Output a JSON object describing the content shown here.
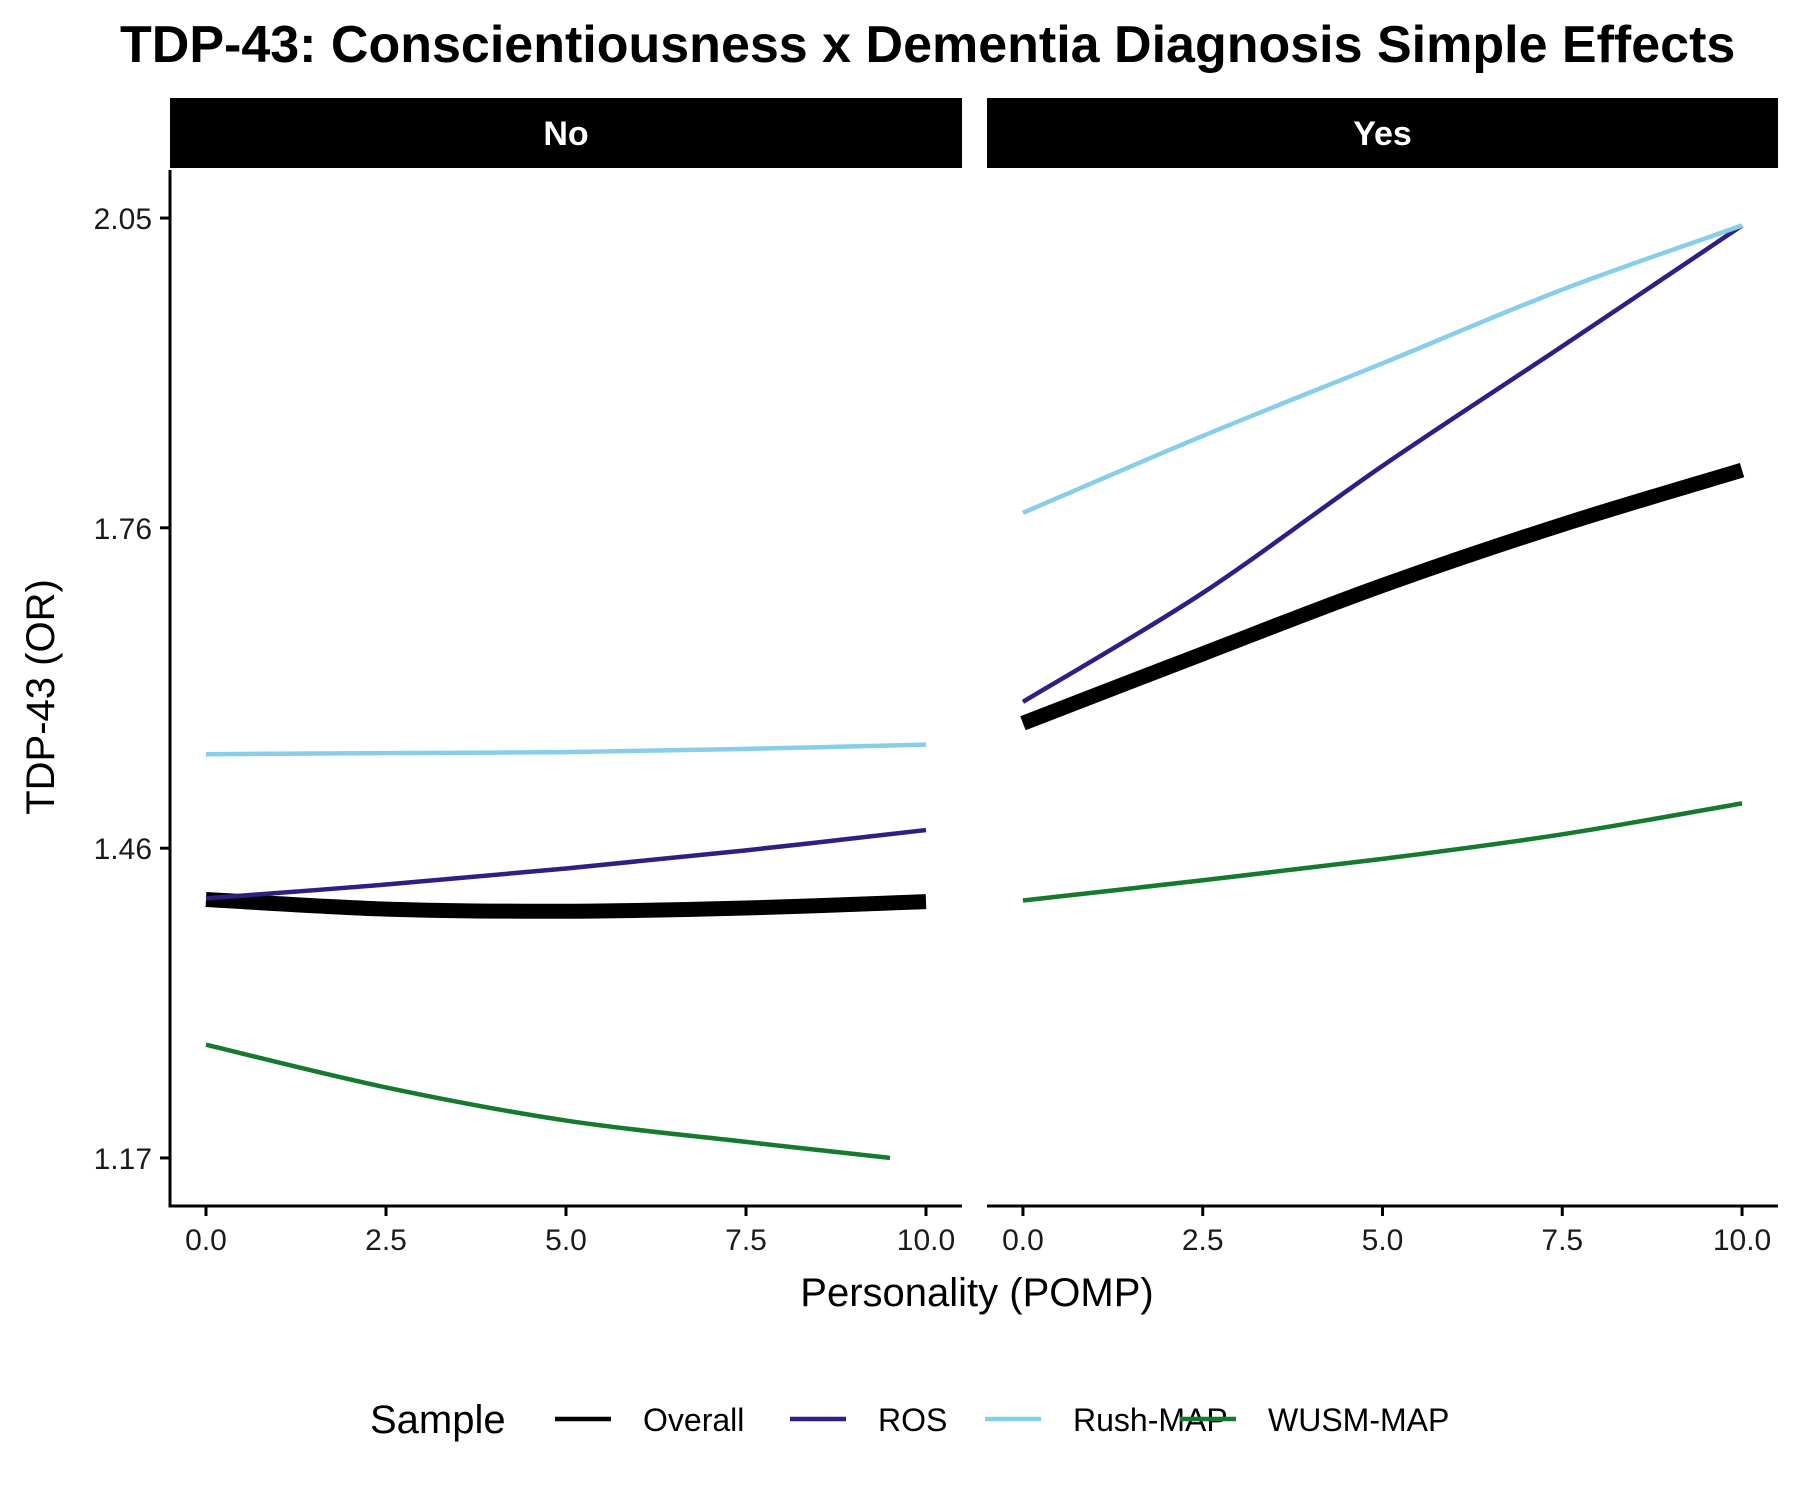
{
  "chart_data": {
    "type": "line",
    "title": "TDP-43: Conscientiousness x Dementia Diagnosis Simple Effects",
    "xlabel": "Personality (POMP)",
    "ylabel": "TDP-43 (OR)",
    "xlim": [
      -0.5,
      10.5
    ],
    "ylim": [
      1.125,
      2.095
    ],
    "x_ticks": [
      0,
      2.5,
      5,
      7.5,
      10
    ],
    "x_tick_labels": [
      "0.0",
      "2.5",
      "5.0",
      "7.5",
      "10.0"
    ],
    "y_ticks": [
      1.17,
      1.46,
      1.76,
      2.05
    ],
    "y_tick_labels": [
      "1.17",
      "1.46",
      "1.76",
      "2.05"
    ],
    "grid": false,
    "legend": {
      "title": "Sample",
      "position": "bottom"
    },
    "facets": [
      {
        "label": "No",
        "series": [
          {
            "name": "Overall",
            "x": [
              0,
              2.5,
              5,
              7.5,
              10
            ],
            "y": [
              1.412,
              1.403,
              1.401,
              1.404,
              1.41
            ]
          },
          {
            "name": "ROS",
            "x": [
              0,
              2.5,
              5,
              7.5,
              10
            ],
            "y": [
              1.413,
              1.426,
              1.441,
              1.458,
              1.477
            ]
          },
          {
            "name": "Rush-MAP",
            "x": [
              0,
              2.5,
              5,
              7.5,
              10
            ],
            "y": [
              1.548,
              1.549,
              1.55,
              1.553,
              1.557
            ]
          },
          {
            "name": "WUSM-MAP",
            "x": [
              0,
              2.5,
              5,
              7.5,
              9.5
            ],
            "y": [
              1.276,
              1.236,
              1.205,
              1.185,
              1.17
            ]
          }
        ]
      },
      {
        "label": "Yes",
        "series": [
          {
            "name": "Overall",
            "x": [
              0,
              2.5,
              5,
              7.5,
              10
            ],
            "y": [
              1.577,
              1.642,
              1.706,
              1.763,
              1.814
            ]
          },
          {
            "name": "ROS",
            "x": [
              0,
              2.5,
              5,
              7.5,
              10
            ],
            "y": [
              1.597,
              1.699,
              1.818,
              1.93,
              2.043
            ]
          },
          {
            "name": "Rush-MAP",
            "x": [
              0,
              2.5,
              5,
              7.5,
              10
            ],
            "y": [
              1.774,
              1.846,
              1.914,
              1.983,
              2.043
            ]
          },
          {
            "name": "WUSM-MAP",
            "x": [
              0,
              2.5,
              5,
              7.5,
              10
            ],
            "y": [
              1.411,
              1.43,
              1.45,
              1.473,
              1.502
            ]
          }
        ]
      }
    ],
    "series_styles": [
      {
        "name": "Overall",
        "color": "#000000",
        "width": 15
      },
      {
        "name": "ROS",
        "color": "#2e1f84",
        "width": 4.5
      },
      {
        "name": "Rush-MAP",
        "color": "#87ceeb",
        "width": 4.5
      },
      {
        "name": "WUSM-MAP",
        "color": "#157a2e",
        "width": 4.5
      }
    ]
  }
}
